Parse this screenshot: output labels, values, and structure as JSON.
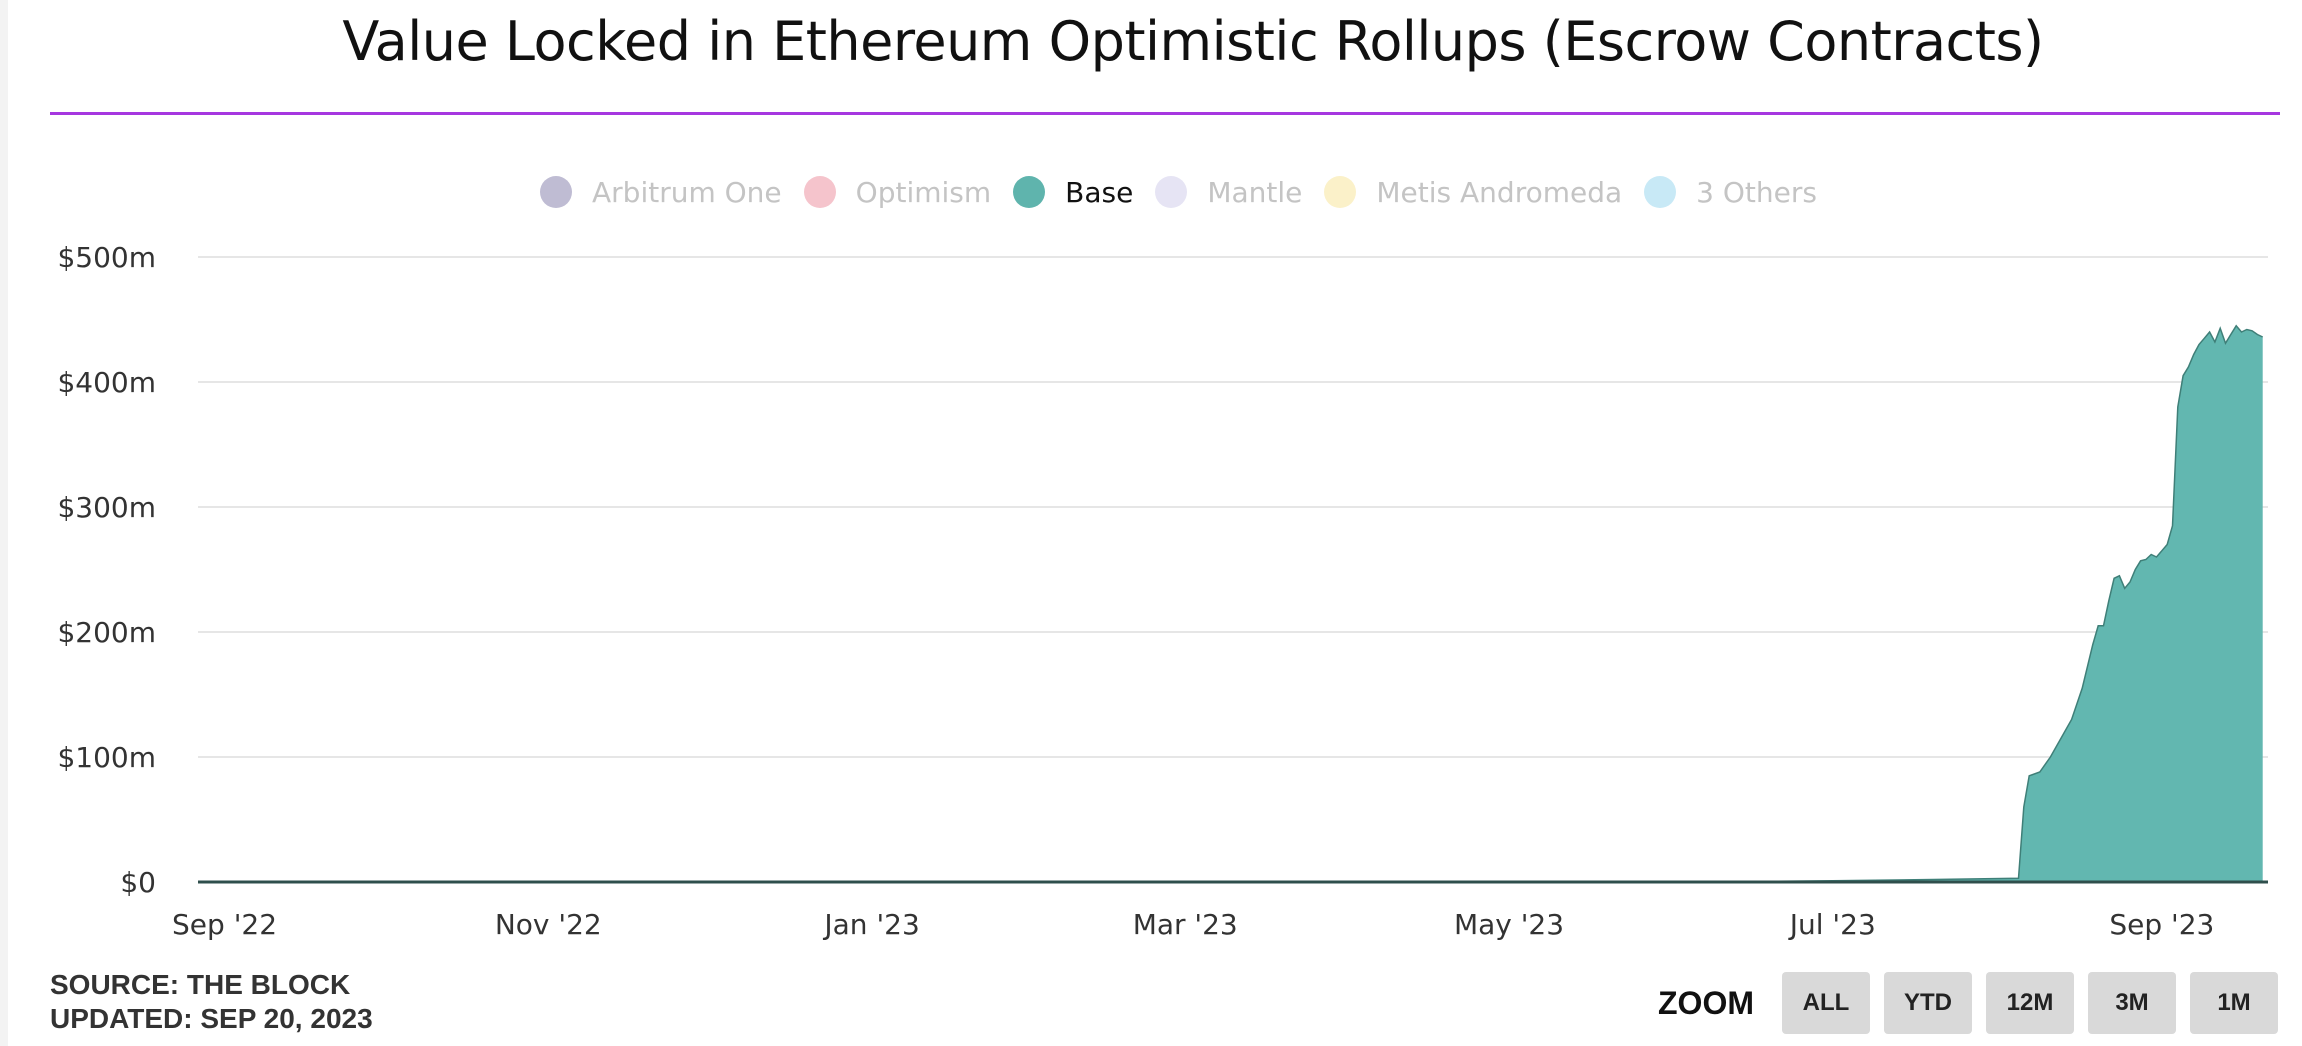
{
  "page": {
    "title": "Value Locked in Ethereum Optimistic Rollups (Escrow Contracts)",
    "source": "SOURCE: THE BLOCK",
    "updated": "UPDATED: SEP 20, 2023",
    "zoom": {
      "label": "ZOOM",
      "buttons": [
        "ALL",
        "YTD",
        "12M",
        "3M",
        "1M"
      ]
    }
  },
  "legend": [
    {
      "name": "Arbitrum One",
      "color": "#bfbcd3",
      "active": false
    },
    {
      "name": "Optimism",
      "color": "#f5c4cc",
      "active": false
    },
    {
      "name": "Base",
      "color": "#5fb4ad",
      "active": true
    },
    {
      "name": "Mantle",
      "color": "#e6e4f4",
      "active": false
    },
    {
      "name": "Metis Andromeda",
      "color": "#fbf1c9",
      "active": false
    },
    {
      "name": "3 Others",
      "color": "#c8e9f6",
      "active": false
    }
  ],
  "chart_data": {
    "type": "area",
    "x_ticks": [
      "Sep '22",
      "Nov '22",
      "Jan '23",
      "Mar '23",
      "May '23",
      "Jul '23",
      "Sep '23"
    ],
    "y_ticks": [
      "$500m",
      "$400m",
      "$300m",
      "$200m",
      "$100m",
      "$0"
    ],
    "ylim": [
      0,
      500
    ],
    "y_unit": "$m",
    "grid": true,
    "legend_position": "top",
    "series": [
      {
        "name": "Base",
        "color": "#62b7b0",
        "points": [
          [
            "2022-09-01",
            0
          ],
          [
            "2023-06-01",
            0
          ],
          [
            "2023-07-01",
            1
          ],
          [
            "2023-07-20",
            2
          ],
          [
            "2023-08-05",
            3
          ],
          [
            "2023-08-06",
            60
          ],
          [
            "2023-08-07",
            85
          ],
          [
            "2023-08-09",
            88
          ],
          [
            "2023-08-11",
            100
          ],
          [
            "2023-08-13",
            115
          ],
          [
            "2023-08-15",
            130
          ],
          [
            "2023-08-17",
            155
          ],
          [
            "2023-08-19",
            190
          ],
          [
            "2023-08-20",
            205
          ],
          [
            "2023-08-21",
            205
          ],
          [
            "2023-08-22",
            225
          ],
          [
            "2023-08-23",
            243
          ],
          [
            "2023-08-24",
            245
          ],
          [
            "2023-08-25",
            235
          ],
          [
            "2023-08-26",
            240
          ],
          [
            "2023-08-27",
            250
          ],
          [
            "2023-08-28",
            257
          ],
          [
            "2023-08-29",
            258
          ],
          [
            "2023-08-30",
            262
          ],
          [
            "2023-08-31",
            260
          ],
          [
            "2023-09-01",
            265
          ],
          [
            "2023-09-02",
            270
          ],
          [
            "2023-09-03",
            285
          ],
          [
            "2023-09-04",
            380
          ],
          [
            "2023-09-05",
            405
          ],
          [
            "2023-09-06",
            412
          ],
          [
            "2023-09-07",
            422
          ],
          [
            "2023-09-08",
            430
          ],
          [
            "2023-09-09",
            435
          ],
          [
            "2023-09-10",
            440
          ],
          [
            "2023-09-11",
            432
          ],
          [
            "2023-09-12",
            443
          ],
          [
            "2023-09-13",
            431
          ],
          [
            "2023-09-14",
            438
          ],
          [
            "2023-09-15",
            445
          ],
          [
            "2023-09-16",
            440
          ],
          [
            "2023-09-17",
            442
          ],
          [
            "2023-09-18",
            441
          ],
          [
            "2023-09-19",
            438
          ],
          [
            "2023-09-20",
            436
          ]
        ]
      }
    ]
  }
}
